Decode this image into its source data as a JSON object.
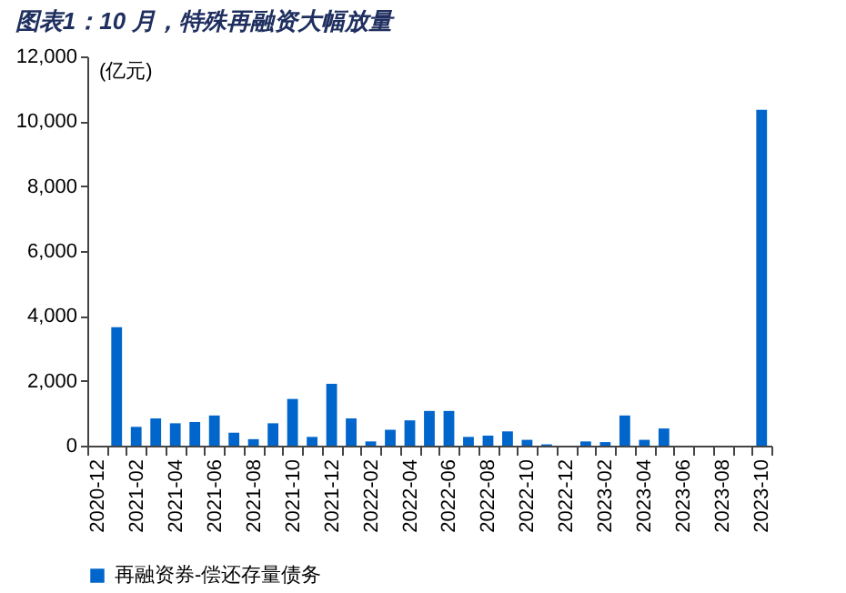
{
  "chart_data": {
    "type": "bar",
    "title": "图表1：10 月，特殊再融资大幅放量",
    "ylabel": "(亿元)",
    "categories": [
      "2020-12",
      null,
      "2021-02",
      null,
      "2021-04",
      null,
      "2021-06",
      null,
      "2021-08",
      null,
      "2021-10",
      null,
      "2021-12",
      null,
      "2022-02",
      null,
      "2022-04",
      null,
      "2022-06",
      null,
      "2022-08",
      null,
      "2022-10",
      null,
      "2022-12",
      null,
      "2023-02",
      null,
      "2023-04",
      null,
      "2023-06",
      null,
      "2023-08",
      null,
      "2023-10"
    ],
    "series": [
      {
        "name": "再融资券-偿还存量债务",
        "color": "#0066cc",
        "values": [
          0,
          3650,
          580,
          840,
          690,
          730,
          930,
          400,
          200,
          690,
          1440,
          270,
          1910,
          840,
          130,
          490,
          780,
          1070,
          1070,
          270,
          310,
          440,
          180,
          40,
          0,
          130,
          110,
          930,
          180,
          530,
          0,
          0,
          0,
          0,
          10350
        ]
      }
    ],
    "ylim": [
      0,
      12000
    ],
    "yticks": [
      0,
      {
        "value": 2000,
        "label": "2,000"
      },
      {
        "value": 4000,
        "label": "4,000"
      },
      {
        "value": 6000,
        "label": "6,000"
      },
      {
        "value": 8000,
        "label": "8,000"
      },
      {
        "value": 10000,
        "label": "10,000"
      },
      {
        "value": 12000,
        "label": "12,000"
      }
    ],
    "grid": false,
    "legend": "bottom"
  }
}
